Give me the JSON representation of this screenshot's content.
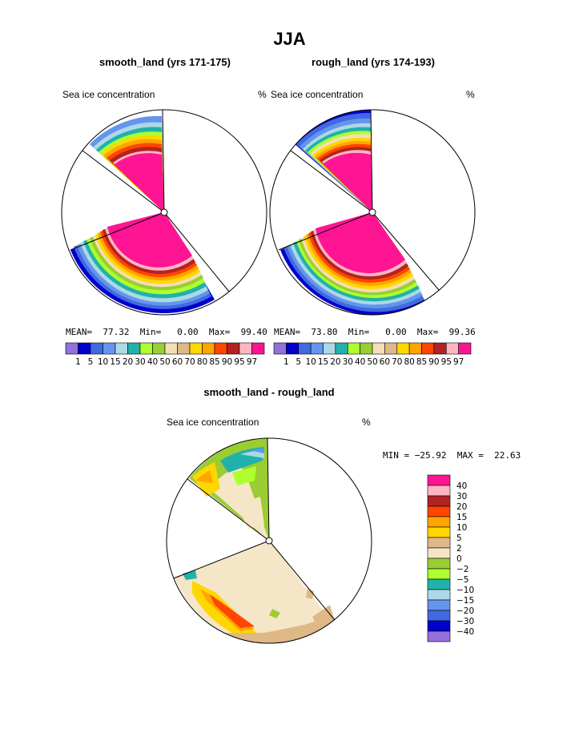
{
  "figure": {
    "title": "JJA",
    "panels": [
      {
        "title": "smooth_land (yrs 171-175)",
        "left_label": "Sea ice concentration",
        "right_label": "%",
        "stats": {
          "mean_label": "MEAN=",
          "mean": "77.32",
          "min_label": "Min=",
          "min": "0.00",
          "max_label": "Max=",
          "max": "99.40"
        }
      },
      {
        "title": "rough_land (yrs 174-193)",
        "left_label": "Sea ice concentration",
        "right_label": "%",
        "stats": {
          "mean_label": "MEAN=",
          "mean": "73.80",
          "min_label": "Min=",
          "min": "0.00",
          "max_label": "Max=",
          "max": "99.36"
        }
      },
      {
        "title": "smooth_land - rough_land",
        "left_label": "Sea ice concentration",
        "right_label": "%",
        "minmax": "MIN = −25.92  MAX =  22.63"
      }
    ]
  },
  "chart_data": [
    {
      "type": "heatmap",
      "title": "smooth_land (yrs 171-175)",
      "variable": "Sea ice concentration",
      "units": "%",
      "mean": 77.32,
      "min": 0.0,
      "max": 99.4,
      "colorbar": {
        "orientation": "horizontal",
        "levels": [
          "1",
          "5",
          "10",
          "15",
          "20",
          "30",
          "40",
          "50",
          "60",
          "70",
          "80",
          "85",
          "90",
          "95",
          "97"
        ],
        "colors": [
          "#9370DB",
          "#0000CD",
          "#4169E1",
          "#6495ED",
          "#ADD8E6",
          "#20B2AA",
          "#ADFF2F",
          "#9ACD32",
          "#F5DEB3",
          "#DEB887",
          "#FFD700",
          "#FFA500",
          "#FF4500",
          "#B22222",
          "#FFB6C1",
          "#FF1493"
        ]
      }
    },
    {
      "type": "heatmap",
      "title": "rough_land (yrs 174-193)",
      "variable": "Sea ice concentration",
      "units": "%",
      "mean": 73.8,
      "min": 0.0,
      "max": 99.36,
      "colorbar": {
        "orientation": "horizontal",
        "levels": [
          "1",
          "5",
          "10",
          "15",
          "20",
          "30",
          "40",
          "50",
          "60",
          "70",
          "80",
          "85",
          "90",
          "95",
          "97"
        ],
        "colors": [
          "#9370DB",
          "#0000CD",
          "#4169E1",
          "#6495ED",
          "#ADD8E6",
          "#20B2AA",
          "#ADFF2F",
          "#9ACD32",
          "#F5DEB3",
          "#DEB887",
          "#FFD700",
          "#FFA500",
          "#FF4500",
          "#B22222",
          "#FFB6C1",
          "#FF1493"
        ]
      }
    },
    {
      "type": "heatmap",
      "title": "smooth_land - rough_land",
      "variable": "Sea ice concentration",
      "units": "%",
      "min": -25.92,
      "max": 22.63,
      "colorbar": {
        "orientation": "vertical",
        "levels": [
          "40",
          "30",
          "20",
          "15",
          "10",
          "5",
          "2",
          "0",
          "−2",
          "−5",
          "−10",
          "−15",
          "−20",
          "−30",
          "−40"
        ],
        "colors": [
          "#FF1493",
          "#FFB6C1",
          "#B22222",
          "#FF4500",
          "#FFA500",
          "#FFD700",
          "#DEB887",
          "#F5E6C8",
          "#9ACD32",
          "#ADFF2F",
          "#20B2AA",
          "#ADD8E6",
          "#6495ED",
          "#4169E1",
          "#0000CD",
          "#9370DB"
        ]
      }
    }
  ]
}
